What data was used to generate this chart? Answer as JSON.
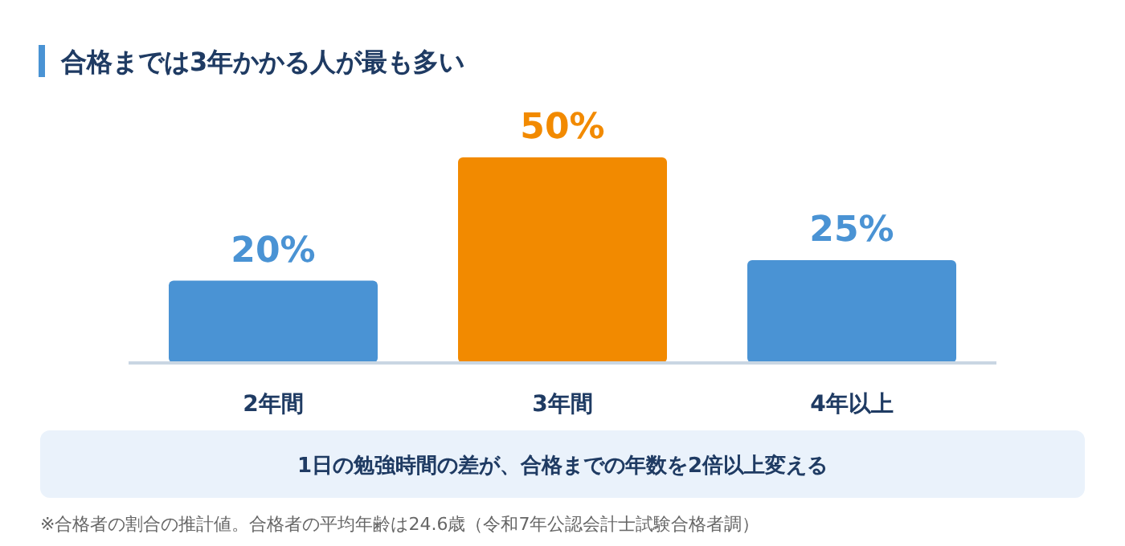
{
  "chart_data": {
    "type": "bar",
    "title": "合格までは3年かかる人が最も多い",
    "categories": [
      "2年間",
      "3年間",
      "4年以上"
    ],
    "values": [
      20,
      50,
      25
    ],
    "colors": [
      "#4a93d4",
      "#f28a00",
      "#4a93d4"
    ],
    "value_labels": [
      "20%",
      "50%",
      "25%"
    ],
    "annotations": [
      "1日の勉強時間の差が、合格までの年数を2倍以上変える",
      "※合格者の割合の推計値。合格者の平均年齢は24.6歳（令和7年公認会計士試験合格者調）"
    ]
  }
}
